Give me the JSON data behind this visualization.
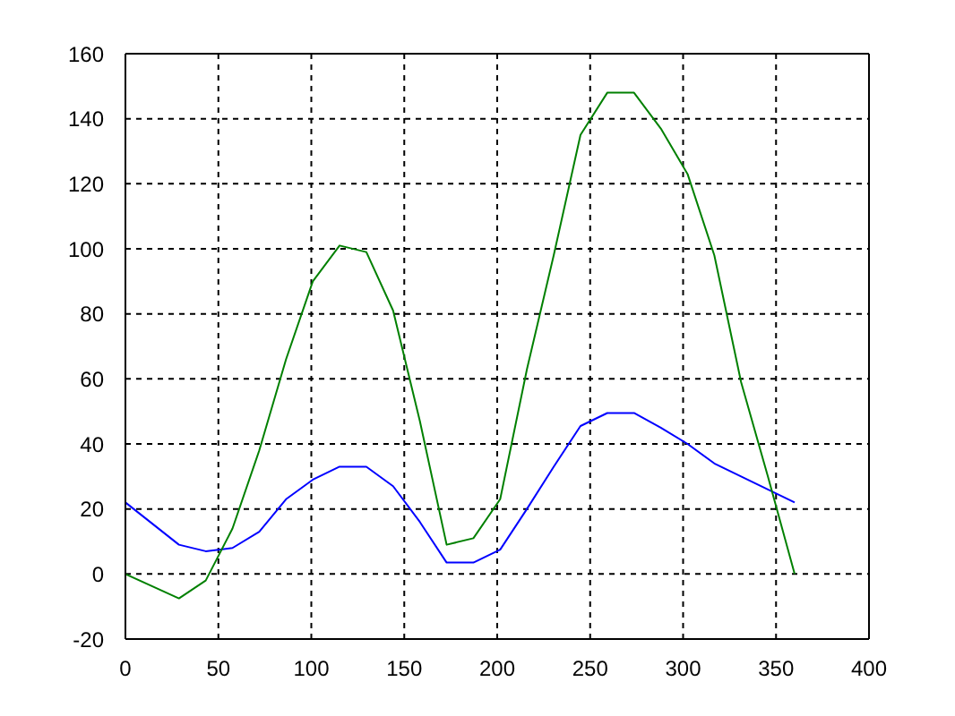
{
  "chart_data": {
    "type": "line",
    "x": [
      0,
      28.8,
      43.2,
      57.6,
      72,
      86.4,
      100.8,
      115.2,
      129.6,
      144,
      158.4,
      172.8,
      187.2,
      201.6,
      216,
      230.4,
      244.8,
      259.2,
      273.6,
      288,
      302.4,
      316.8,
      331.2,
      345.6,
      360
    ],
    "series": [
      {
        "color": "#0000ff",
        "values": [
          22,
          9,
          7,
          8,
          13,
          23,
          29,
          33,
          33,
          27,
          16,
          3.5,
          3.5,
          7.5,
          20,
          33,
          45.5,
          49.5,
          49.5,
          45,
          40,
          34,
          30,
          26,
          22
        ]
      },
      {
        "color": "#008000",
        "values": [
          0,
          -7.5,
          -2,
          14,
          38,
          66,
          90,
          101,
          99,
          81,
          47,
          9,
          11,
          23,
          63,
          98,
          135,
          148,
          148,
          137,
          123,
          98,
          59,
          30,
          0
        ]
      }
    ],
    "xlim": [
      0,
      400
    ],
    "xticks": [
      0,
      50,
      100,
      150,
      200,
      250,
      300,
      350,
      400
    ],
    "ylim": [
      -20,
      160
    ],
    "yticks": [
      -20,
      0,
      20,
      40,
      60,
      80,
      100,
      120,
      140,
      160
    ],
    "grid": true,
    "marker": "none",
    "line_style": "solid"
  }
}
